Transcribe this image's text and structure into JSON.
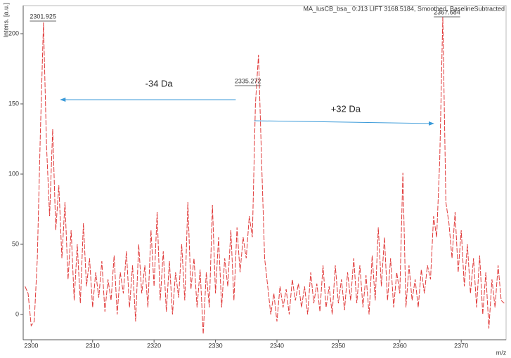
{
  "chart_data": {
    "type": "line",
    "title": "MA_lusCB_bsa_ 0:J13 LIFT 3168.5184, Smoothed, BaselineSubtracted",
    "y_label": "Intens. [a.u.]",
    "x_label": "m/z",
    "xlim": [
      2298.7,
      2377.3
    ],
    "ylim": [
      -18,
      220
    ],
    "xticks": [
      2300,
      2310,
      2320,
      2330,
      2340,
      2350,
      2360,
      2370
    ],
    "yticks": [
      0,
      50,
      100,
      150,
      200
    ],
    "x": [
      2299,
      2299.5,
      2300,
      2300.5,
      2301,
      2301.5,
      2302,
      2302.5,
      2303,
      2303.5,
      2304,
      2304.5,
      2305,
      2305.5,
      2306,
      2306.5,
      2307,
      2307.5,
      2308,
      2308.5,
      2309,
      2309.5,
      2310,
      2310.5,
      2311,
      2311.5,
      2312,
      2312.5,
      2313,
      2313.5,
      2314,
      2314.5,
      2315,
      2315.5,
      2316,
      2316.5,
      2317,
      2317.5,
      2318,
      2318.5,
      2319,
      2319.5,
      2320,
      2320.5,
      2321,
      2321.5,
      2322,
      2322.5,
      2323,
      2323.5,
      2324,
      2324.5,
      2325,
      2325.5,
      2326,
      2326.5,
      2327,
      2327.5,
      2328,
      2328.5,
      2329,
      2329.5,
      2330,
      2330.5,
      2331,
      2331.5,
      2332,
      2332.5,
      2333,
      2333.5,
      2334,
      2334.5,
      2335,
      2335.5,
      2336,
      2336.5,
      2337,
      2337.5,
      2338,
      2338.5,
      2339,
      2339.5,
      2340,
      2340.5,
      2341,
      2341.5,
      2342,
      2342.5,
      2343,
      2343.5,
      2344,
      2344.5,
      2345,
      2345.5,
      2346,
      2346.5,
      2347,
      2347.5,
      2348,
      2348.5,
      2349,
      2349.5,
      2350,
      2350.5,
      2351,
      2351.5,
      2352,
      2352.5,
      2353,
      2353.5,
      2354,
      2354.5,
      2355,
      2355.5,
      2356,
      2356.5,
      2357,
      2357.5,
      2358,
      2358.5,
      2359,
      2359.5,
      2360,
      2360.5,
      2361,
      2361.5,
      2362,
      2362.5,
      2363,
      2363.5,
      2364,
      2364.5,
      2365,
      2365.5,
      2366,
      2366.5,
      2367,
      2367.5,
      2368,
      2368.5,
      2369,
      2369.5,
      2370,
      2370.5,
      2371,
      2371.5,
      2372,
      2372.5,
      2373,
      2373.5,
      2374,
      2374.5,
      2375,
      2375.5,
      2376,
      2376.5,
      2377
    ],
    "series": [
      {
        "color": "#e03a3a",
        "values": [
          20,
          15,
          -8,
          -5,
          40,
          130,
          208,
          120,
          70,
          132,
          60,
          92,
          40,
          80,
          25,
          60,
          10,
          50,
          8,
          65,
          20,
          40,
          5,
          30,
          12,
          38,
          2,
          25,
          10,
          42,
          0,
          30,
          15,
          45,
          5,
          35,
          -5,
          50,
          15,
          35,
          5,
          60,
          20,
          73,
          10,
          45,
          2,
          38,
          0,
          30,
          12,
          50,
          10,
          80,
          18,
          40,
          5,
          32,
          -14,
          30,
          5,
          78,
          15,
          55,
          5,
          40,
          20,
          60,
          10,
          62,
          30,
          55,
          40,
          70,
          55,
          150,
          185,
          110,
          40,
          20,
          0,
          15,
          -5,
          20,
          5,
          18,
          0,
          25,
          10,
          22,
          5,
          20,
          0,
          30,
          8,
          22,
          2,
          35,
          5,
          20,
          0,
          35,
          8,
          25,
          3,
          30,
          10,
          40,
          8,
          35,
          5,
          28,
          0,
          42,
          10,
          62,
          20,
          55,
          10,
          40,
          5,
          30,
          15,
          101,
          5,
          35,
          10,
          25,
          5,
          32,
          15,
          35,
          25,
          70,
          55,
          110,
          212,
          80,
          65,
          40,
          73,
          30,
          60,
          20,
          50,
          15,
          40,
          5,
          42,
          0,
          30,
          -10,
          25,
          5,
          35,
          10,
          8
        ]
      }
    ],
    "peak_labels": [
      {
        "mz": 2301.925,
        "y": 212
      },
      {
        "mz": 2335.272,
        "y": 166
      },
      {
        "mz": 2367.684,
        "y": 215
      }
    ],
    "annotations": [
      {
        "text": "-34 Da",
        "x": 2320.8,
        "y": 164,
        "from": [
          2333.3,
          153
        ],
        "to": [
          2304.8,
          153
        ]
      },
      {
        "text": "+32 Da",
        "x": 2351.2,
        "y": 146,
        "from": [
          2336.3,
          138
        ],
        "to": [
          2365.5,
          136
        ]
      }
    ],
    "arrow_color": "#3a9ad9"
  }
}
